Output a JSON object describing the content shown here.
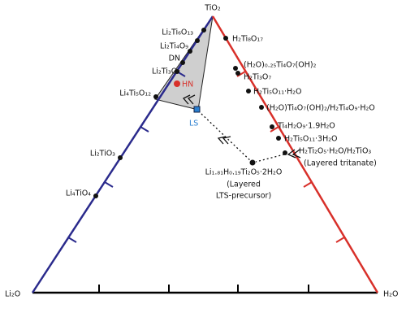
{
  "vertices": {
    "top": "TiO₂",
    "left": "Li₂O",
    "right": "H₂O"
  },
  "left_labels": [
    "Li₂Ti₆O₁₃",
    "Li₂Ti₄O₉",
    "DN",
    "Li₂Ti₃O₇",
    "Li₄Ti₅O₁₂",
    "Li₂TiO₃",
    "Li₄TiO₄"
  ],
  "right_labels": [
    "H₂Ti₈O₁₇",
    "(H₂O)₀.₂₅Ti₄O₇(OH)₂",
    "H₂Ti₃O₇",
    "H₂Ti₅O₁₁·H₂O",
    "(H₂O)Ti₄O₇(OH)₂/H₂Ti₄O₉·H₂O",
    "Ti₄H₂O₉·1.9H₂O",
    "H₂Ti₅O₁₁·3H₂O",
    "H₂Ti₂O₅·H₂O/H₂TiO₃",
    "(Layered tritanate)"
  ],
  "points": {
    "hn": "HN",
    "ls": "LS"
  },
  "precursor": [
    "Li₁.₈₁H₀.₁₉Ti₂O₅·2H₂O",
    "(Layered",
    "LTS-precursor)"
  ]
}
